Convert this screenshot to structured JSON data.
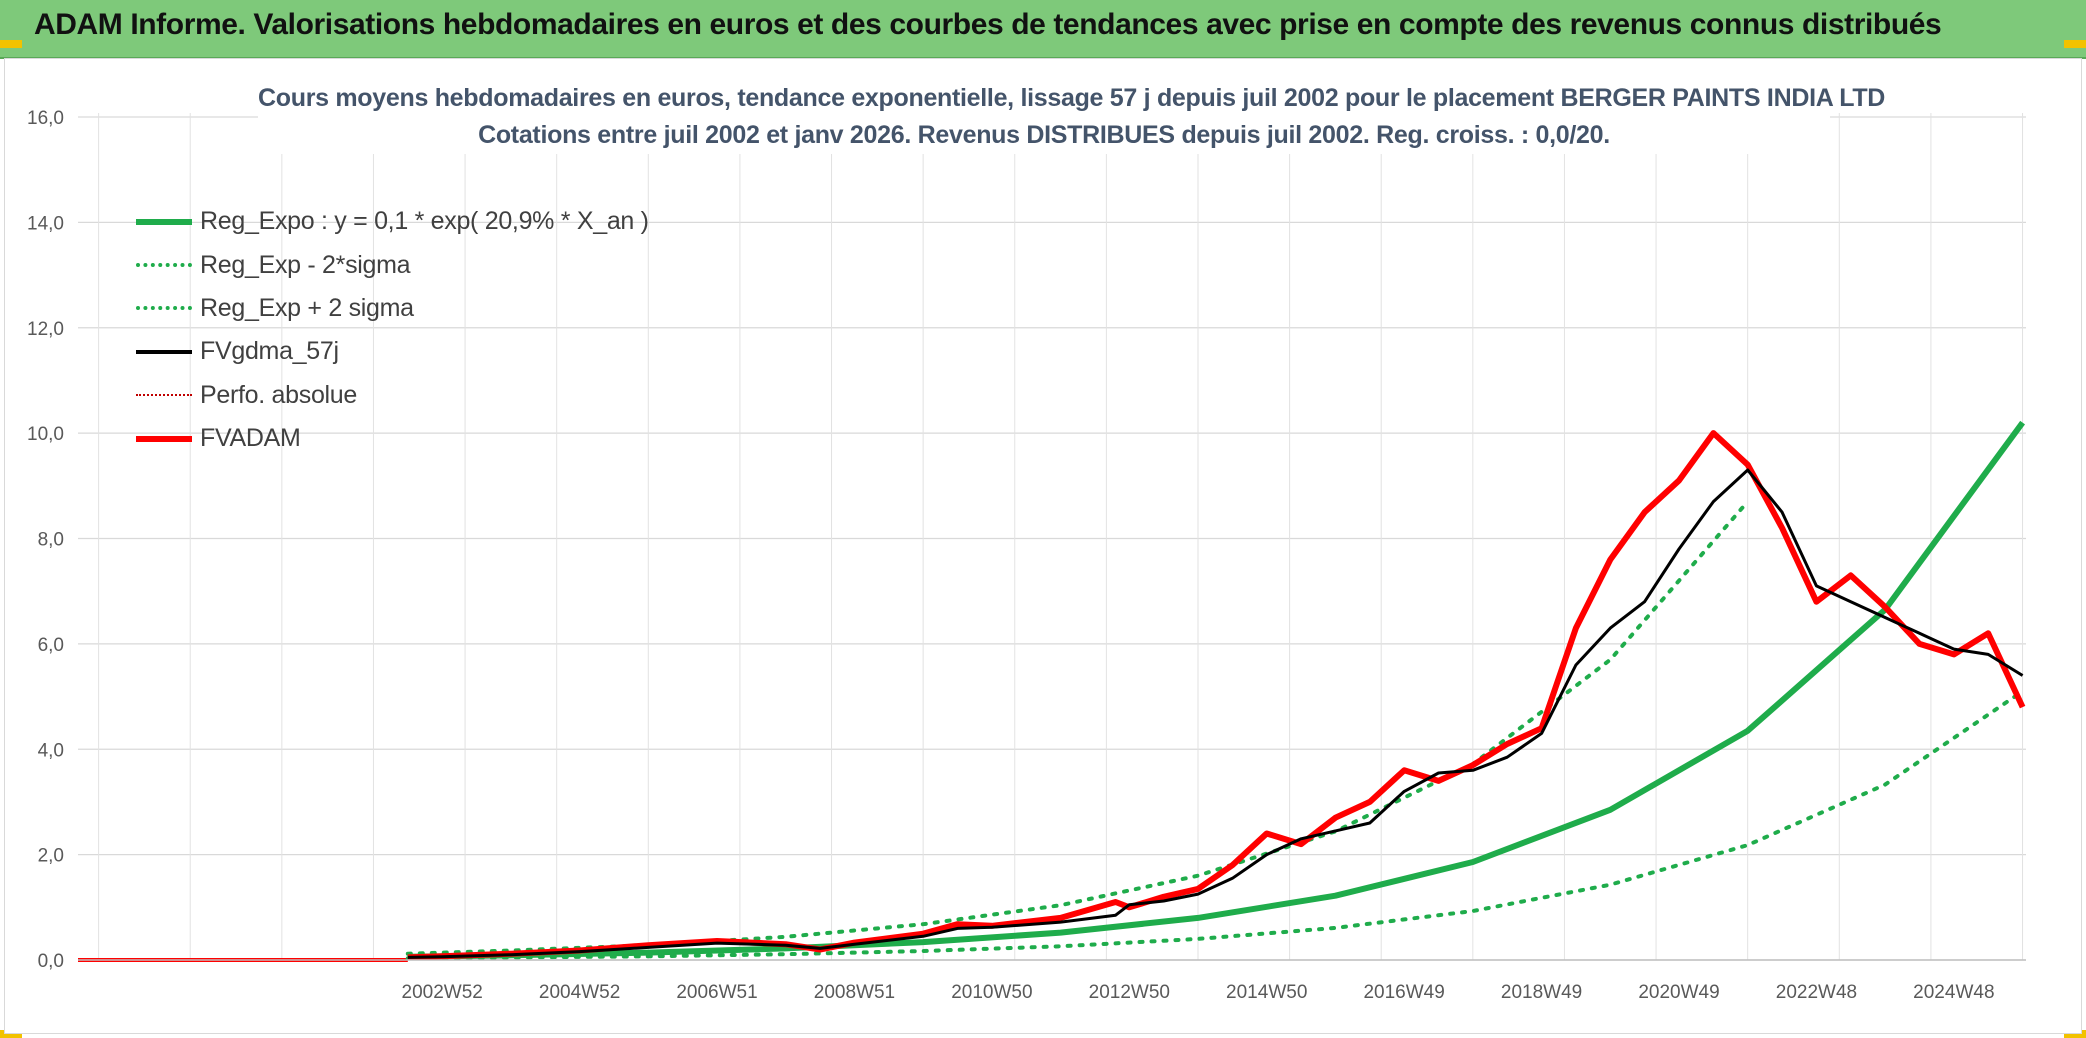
{
  "header": {
    "title": "ADAM Informe. Valorisations hebdomadaires en euros et des courbes de tendances avec prise en compte des revenus connus distribués"
  },
  "chart_data": {
    "type": "line",
    "title_line1": "Cours moyens hebdomadaires en euros, tendance exponentielle, lissage 57 j depuis juil 2002 pour le placement BERGER PAINTS INDIA LTD",
    "title_line2": "Cotations entre juil 2002 et janv 2026. Revenus DISTRIBUES depuis juil 2002. Reg. croiss. : 0,0/20.",
    "ylim": [
      0,
      16
    ],
    "y_ticks": [
      "0,0",
      "2,0",
      "4,0",
      "6,0",
      "8,0",
      "10,0",
      "12,0",
      "14,0",
      "16,0"
    ],
    "x_tick_labels": [
      "2002W52",
      "2004W52",
      "2006W51",
      "2008W51",
      "2010W50",
      "2012W50",
      "2014W50",
      "2016W49",
      "2018W49",
      "2020W49",
      "2022W48",
      "2024W48"
    ],
    "x_tick_years": [
      2003.0,
      2005.0,
      2007.0,
      2009.0,
      2011.0,
      2013.0,
      2015.0,
      2017.0,
      2019.0,
      2021.0,
      2023.0,
      2025.0
    ],
    "x_start": 1997.7,
    "x_end": 2026.05,
    "grid": true,
    "legend_position": "top-left",
    "series": [
      {
        "name": "Reg_Expo : y = 0,1 * exp( 20,9% *  X_an )",
        "color": "#1fac4b",
        "style": "solid-thick",
        "x": [
          2002.5,
          2004,
          2006,
          2008,
          2010,
          2012,
          2014,
          2016,
          2018,
          2020,
          2022,
          2024,
          2026.0
        ],
        "y": [
          0.06,
          0.09,
          0.14,
          0.22,
          0.34,
          0.52,
          0.8,
          1.22,
          1.86,
          2.85,
          4.35,
          6.65,
          10.2
        ]
      },
      {
        "name": "Reg_Exp - 2*sigma",
        "color": "#1fac4b",
        "style": "dotted",
        "x": [
          2002.5,
          2004,
          2006,
          2008,
          2010,
          2012,
          2014,
          2016,
          2018,
          2020,
          2022,
          2024,
          2026.0
        ],
        "y": [
          0.03,
          0.05,
          0.07,
          0.11,
          0.17,
          0.26,
          0.4,
          0.61,
          0.93,
          1.43,
          2.18,
          3.33,
          5.1
        ]
      },
      {
        "name": "Reg_Exp + 2 sigma",
        "color": "#1fac4b",
        "style": "dotted",
        "x": [
          2002.5,
          2004,
          2006,
          2008,
          2010,
          2012,
          2014,
          2016,
          2018,
          2020,
          2022
        ],
        "y": [
          0.12,
          0.18,
          0.28,
          0.44,
          0.68,
          1.04,
          1.6,
          2.44,
          3.72,
          5.7,
          8.7
        ]
      },
      {
        "name": "FVgdma_57j",
        "color": "#000000",
        "style": "solid",
        "x": [
          2002.5,
          2003,
          2004,
          2005,
          2006,
          2007,
          2008,
          2008.5,
          2009,
          2010,
          2010.5,
          2011,
          2012,
          2012.8,
          2013,
          2013.5,
          2014,
          2014.5,
          2015,
          2015.5,
          2016,
          2016.5,
          2017,
          2017.5,
          2018,
          2018.5,
          2019,
          2019.5,
          2020,
          2020.5,
          2021,
          2021.5,
          2022,
          2022.5,
          2023,
          2023.5,
          2024,
          2024.5,
          2025,
          2025.5,
          2026.0
        ],
        "y": [
          0.05,
          0.06,
          0.1,
          0.16,
          0.24,
          0.32,
          0.28,
          0.22,
          0.3,
          0.45,
          0.6,
          0.62,
          0.72,
          0.85,
          1.05,
          1.12,
          1.25,
          1.55,
          2.0,
          2.3,
          2.45,
          2.6,
          3.2,
          3.55,
          3.6,
          3.85,
          4.3,
          5.6,
          6.3,
          6.8,
          7.8,
          8.7,
          9.3,
          8.5,
          7.1,
          6.8,
          6.5,
          6.2,
          5.9,
          5.8,
          5.4
        ]
      },
      {
        "name": "Perfo. absolue",
        "color": "#c00000",
        "style": "dotted-thin",
        "x": [],
        "y": []
      },
      {
        "name": "FVADAM",
        "color": "#ff0000",
        "style": "solid-thick",
        "x": [
          2002.5,
          2003,
          2004,
          2005,
          2006,
          2007,
          2008,
          2008.5,
          2009,
          2010,
          2010.5,
          2011,
          2012,
          2012.8,
          2013,
          2013.5,
          2014,
          2014.5,
          2015,
          2015.5,
          2016,
          2016.5,
          2017,
          2017.5,
          2018,
          2018.5,
          2019,
          2019.5,
          2020,
          2020.5,
          2021,
          2021.5,
          2022,
          2022.5,
          2023,
          2023.5,
          2024,
          2024.5,
          2025,
          2025.5,
          2026.0
        ],
        "y": [
          0.05,
          0.07,
          0.12,
          0.18,
          0.28,
          0.36,
          0.3,
          0.2,
          0.33,
          0.5,
          0.68,
          0.65,
          0.8,
          1.1,
          1.0,
          1.2,
          1.35,
          1.8,
          2.4,
          2.2,
          2.7,
          3.0,
          3.6,
          3.4,
          3.7,
          4.1,
          4.4,
          6.3,
          7.6,
          8.5,
          9.1,
          10.0,
          9.4,
          8.2,
          6.8,
          7.3,
          6.7,
          6.0,
          5.8,
          6.2,
          4.8
        ]
      }
    ]
  }
}
